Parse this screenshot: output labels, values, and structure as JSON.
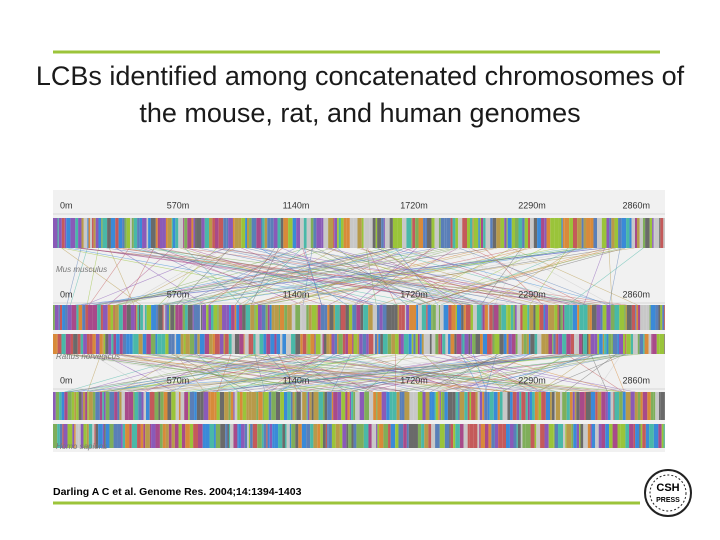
{
  "title": "LCBs identified among concatenated chromosomes of the mouse, rat, and human genomes",
  "figure": {
    "ruler": [
      "0m",
      "570m",
      "1140m",
      "1720m",
      "2290m",
      "2860m"
    ],
    "tracks": [
      {
        "name": "Mus musculus"
      },
      {
        "name": "Rattus norvegicus"
      },
      {
        "name": "Homo sapiens"
      }
    ]
  },
  "citation": "Darling A C et al. Genome Res. 2004;14:1394-1403",
  "logo": {
    "line1": "CSH",
    "line2": "PRESS"
  }
}
